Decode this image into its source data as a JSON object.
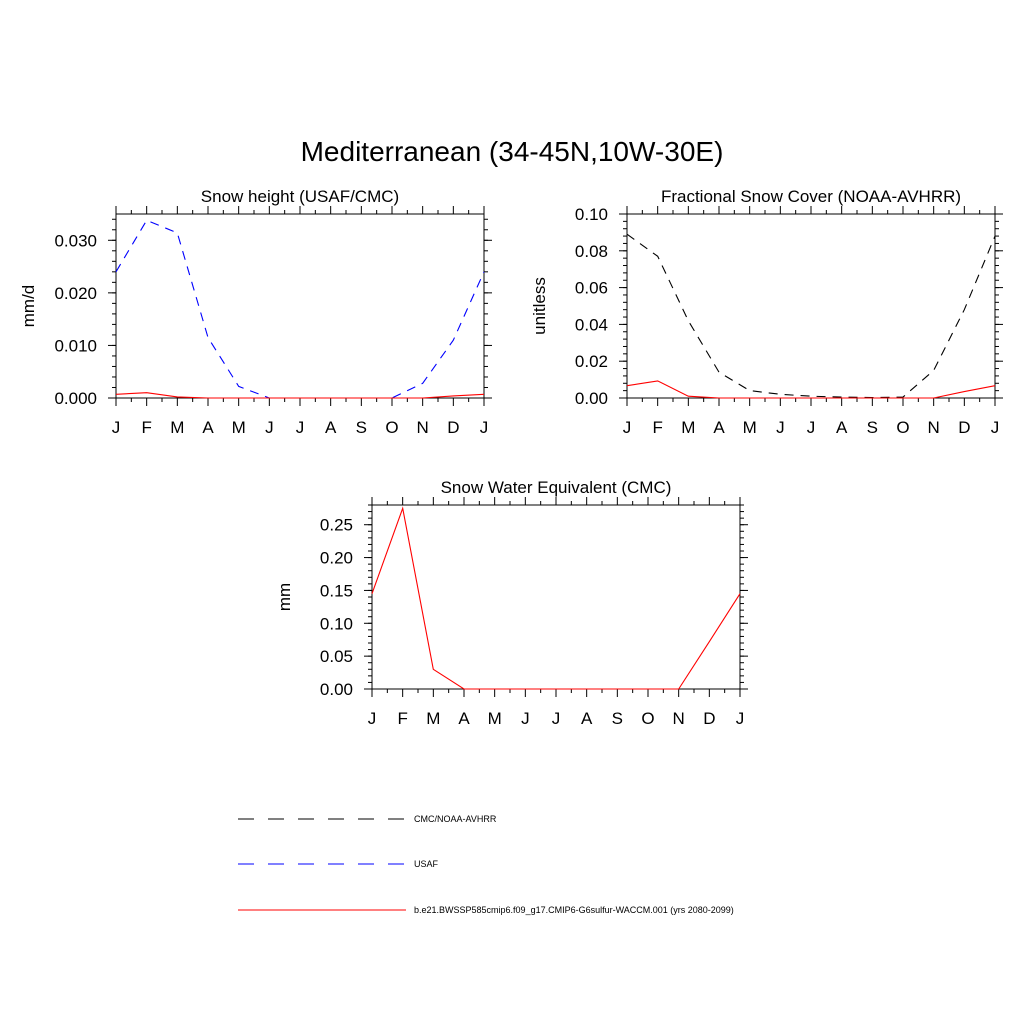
{
  "page": {
    "title": "Mediterranean (34-45N,10W-30E)"
  },
  "legend": [
    {
      "label": "CMC/NOAA-AVHRR",
      "color": "#000000",
      "dash": "dashed"
    },
    {
      "label": "USAF",
      "color": "#0000ff",
      "dash": "dashed"
    },
    {
      "label": "b.e21.BWSSP585cmip6.f09_g17.CMIP6-G6sulfur-WACCM.001 (yrs 2080-2099)",
      "color": "#ff0000",
      "dash": "solid"
    }
  ],
  "chart_data": [
    {
      "type": "line",
      "title": "Snow height (USAF/CMC)",
      "xlabel": "",
      "ylabel": "mm/d",
      "categories": [
        "J",
        "F",
        "M",
        "A",
        "M",
        "J",
        "J",
        "A",
        "S",
        "O",
        "N",
        "D",
        "J"
      ],
      "ylim": [
        0,
        0.035
      ],
      "yticks": [
        0.0,
        0.01,
        0.02,
        0.03
      ],
      "ytick_labels": [
        "0.000",
        "0.010",
        "0.020",
        "0.030"
      ],
      "series": [
        {
          "name": "USAF",
          "color": "#0000ff",
          "dash": "dashed",
          "values": [
            0.024,
            0.0338,
            0.0314,
            0.0115,
            0.0022,
            0.0,
            0.0,
            0.0,
            0.0,
            0.0,
            0.0028,
            0.011,
            0.024
          ]
        },
        {
          "name": "b.e21.BWSSP585cmip6.f09_g17.CMIP6-G6sulfur-WACCM.001 (yrs 2080-2099)",
          "color": "#ff0000",
          "dash": "solid",
          "values": [
            0.0007,
            0.001,
            0.0002,
            0.0,
            0.0,
            0.0,
            0.0,
            0.0,
            0.0,
            0.0,
            0.0,
            0.0004,
            0.0007
          ]
        }
      ]
    },
    {
      "type": "line",
      "title": "Fractional Snow Cover (NOAA-AVHRR)",
      "xlabel": "",
      "ylabel": "unitless",
      "categories": [
        "J",
        "F",
        "M",
        "A",
        "M",
        "J",
        "J",
        "A",
        "S",
        "O",
        "N",
        "D",
        "J"
      ],
      "ylim": [
        0,
        0.1
      ],
      "yticks": [
        0.0,
        0.02,
        0.04,
        0.06,
        0.08,
        0.1
      ],
      "ytick_labels": [
        "0.00",
        "0.02",
        "0.04",
        "0.06",
        "0.08",
        "0.10"
      ],
      "series": [
        {
          "name": "CMC/NOAA-AVHRR",
          "color": "#000000",
          "dash": "dashed",
          "values": [
            0.089,
            0.077,
            0.042,
            0.014,
            0.004,
            0.002,
            0.001,
            0.0005,
            0.0002,
            0.0005,
            0.015,
            0.048,
            0.088
          ]
        },
        {
          "name": "b.e21.BWSSP585cmip6.f09_g17.CMIP6-G6sulfur-WACCM.001 (yrs 2080-2099)",
          "color": "#ff0000",
          "dash": "solid",
          "values": [
            0.0067,
            0.0093,
            0.001,
            0.0,
            0.0,
            0.0,
            0.0,
            0.0,
            0.0,
            0.0,
            0.0,
            0.0035,
            0.0067
          ]
        }
      ]
    },
    {
      "type": "line",
      "title": "Snow Water Equivalent (CMC)",
      "xlabel": "",
      "ylabel": "mm",
      "categories": [
        "J",
        "F",
        "M",
        "A",
        "M",
        "J",
        "J",
        "A",
        "S",
        "O",
        "N",
        "D",
        "J"
      ],
      "ylim": [
        0,
        0.28
      ],
      "yticks": [
        0.0,
        0.05,
        0.1,
        0.15,
        0.2,
        0.25
      ],
      "ytick_labels": [
        "0.00",
        "0.05",
        "0.10",
        "0.15",
        "0.20",
        "0.25"
      ],
      "series": [
        {
          "name": "CMC/NOAA-AVHRR",
          "color": "#000000",
          "dash": "dashed",
          "values": [
            0,
            0,
            0,
            0,
            0,
            0,
            0,
            0,
            0,
            0,
            0,
            0,
            0
          ]
        },
        {
          "name": "b.e21.BWSSP585cmip6.f09_g17.CMIP6-G6sulfur-WACCM.001 (yrs 2080-2099)",
          "color": "#ff0000",
          "dash": "solid",
          "values": [
            0.145,
            0.275,
            0.03,
            0.0,
            0.0,
            0.0,
            0.0,
            0.0,
            0.0,
            0.0,
            0.0,
            0.072,
            0.145
          ]
        }
      ]
    }
  ]
}
